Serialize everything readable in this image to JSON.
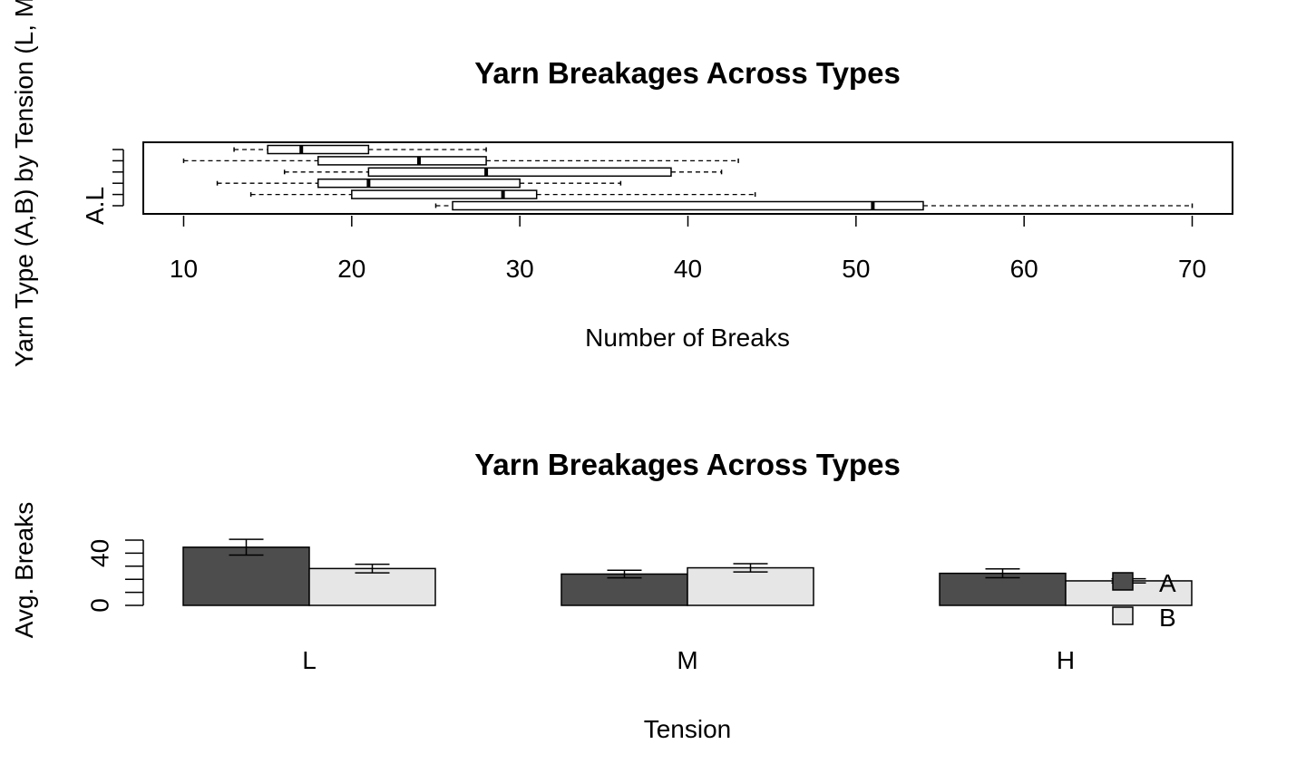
{
  "chart_data": [
    {
      "type": "boxplot",
      "title": "Yarn Breakages Across Types",
      "xlabel": "Number of Breaks",
      "ylabel": "Yarn Type (A,B) by Tension (L, M, H)",
      "categories": [
        "A.L",
        null,
        null,
        null,
        null,
        null
      ],
      "boxes": [
        {
          "min": 25,
          "q1": 26,
          "median": 51,
          "q3": 54,
          "max": 70
        },
        {
          "min": 14,
          "q1": 20,
          "median": 29,
          "q3": 31,
          "max": 44
        },
        {
          "min": 12,
          "q1": 18,
          "median": 21,
          "q3": 30,
          "max": 36
        },
        {
          "min": 16,
          "q1": 21,
          "median": 28,
          "q3": 39,
          "max": 42
        },
        {
          "min": 10,
          "q1": 18,
          "median": 24,
          "q3": 28,
          "max": 43
        },
        {
          "min": 13,
          "q1": 15,
          "median": 17,
          "q3": 21,
          "max": 28
        }
      ],
      "xlim": [
        7.6,
        72.4
      ],
      "xticks": [
        10,
        20,
        30,
        40,
        50,
        60,
        70
      ]
    },
    {
      "type": "bar",
      "title": "Yarn Breakages Across Types",
      "xlabel": "Tension",
      "ylabel": "Avg. Breaks",
      "categories": [
        "L",
        "M",
        "H"
      ],
      "series": [
        {
          "name": "A",
          "color": "#4d4d4d",
          "values": [
            44.56,
            24.0,
            24.56
          ],
          "errors": [
            6.03,
            2.89,
            3.42
          ]
        },
        {
          "name": "B",
          "color": "#e6e6e6",
          "values": [
            28.22,
            28.78,
            18.78
          ],
          "errors": [
            3.29,
            3.14,
            1.63
          ]
        }
      ],
      "ylim": [
        0,
        50
      ],
      "yticks": [
        0,
        40
      ],
      "yminorticks": [
        10,
        20,
        30,
        50
      ]
    }
  ]
}
